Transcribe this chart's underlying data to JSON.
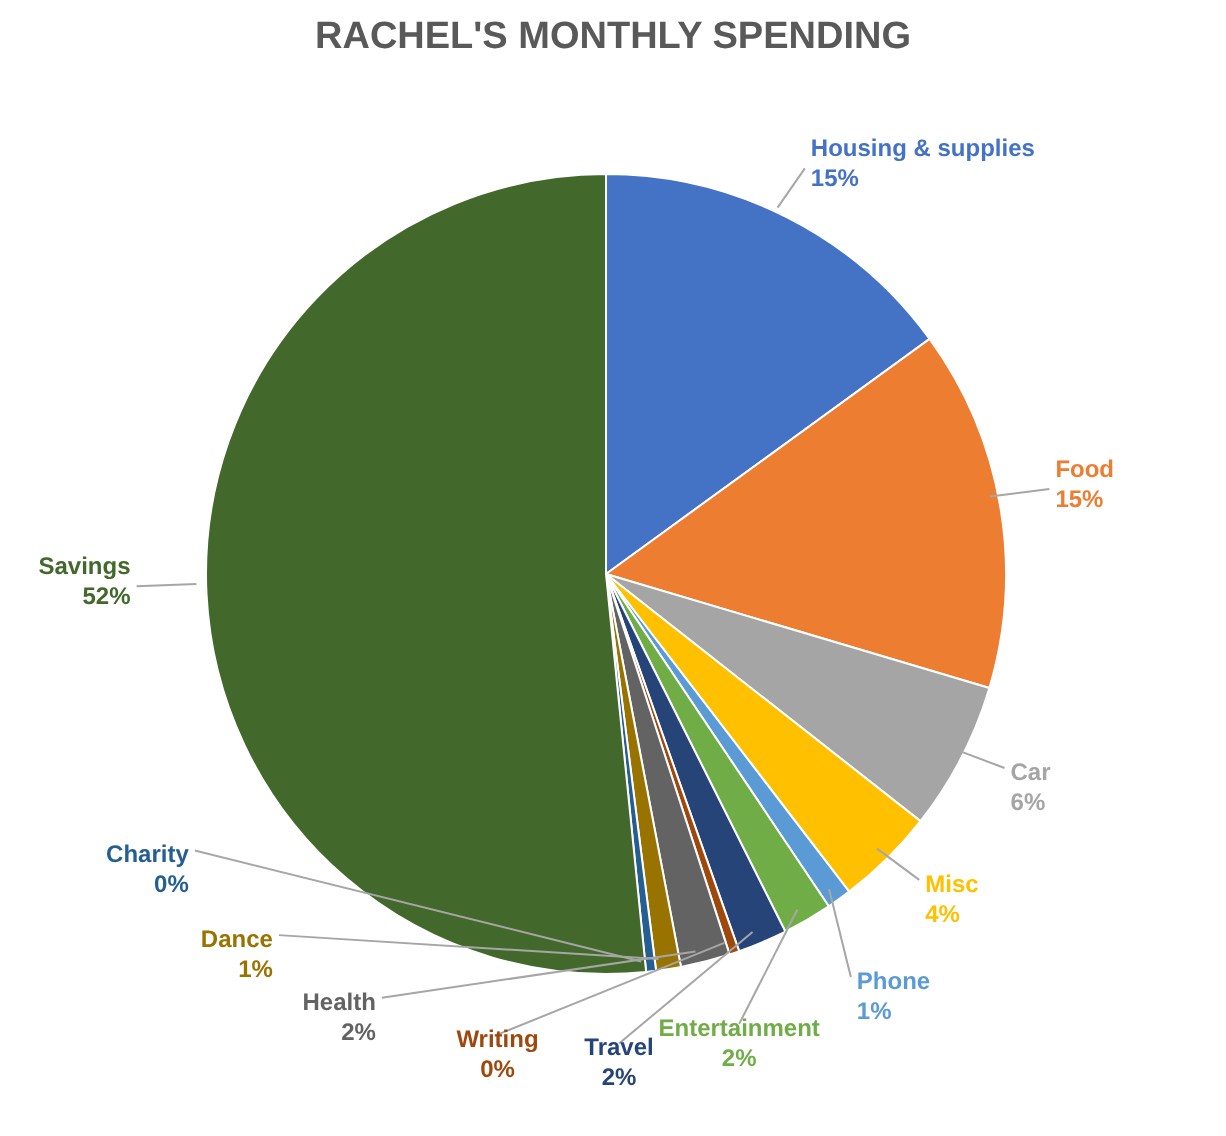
{
  "chart_data": {
    "type": "pie",
    "title": "RACHEL'S MONTHLY SPENDING",
    "categories": [
      "Housing & supplies",
      "Food",
      "Car",
      "Misc",
      "Phone",
      "Entertainment",
      "Travel",
      "Writing",
      "Health",
      "Dance",
      "Charity",
      "Savings"
    ],
    "values": [
      15,
      14.6,
      6,
      4,
      1,
      2,
      2,
      0.4,
      2,
      1,
      0.4,
      51.6
    ],
    "value_labels": [
      "15%",
      "15%",
      "6%",
      "4%",
      "1%",
      "2%",
      "2%",
      "0%",
      "2%",
      "1%",
      "0%",
      "52%"
    ],
    "colors": [
      "#4472c4",
      "#ed7d31",
      "#a5a5a5",
      "#ffc000",
      "#5b9bd5",
      "#70ad47",
      "#264478",
      "#9e480e",
      "#636363",
      "#997300",
      "#255e91",
      "#43682b"
    ]
  }
}
